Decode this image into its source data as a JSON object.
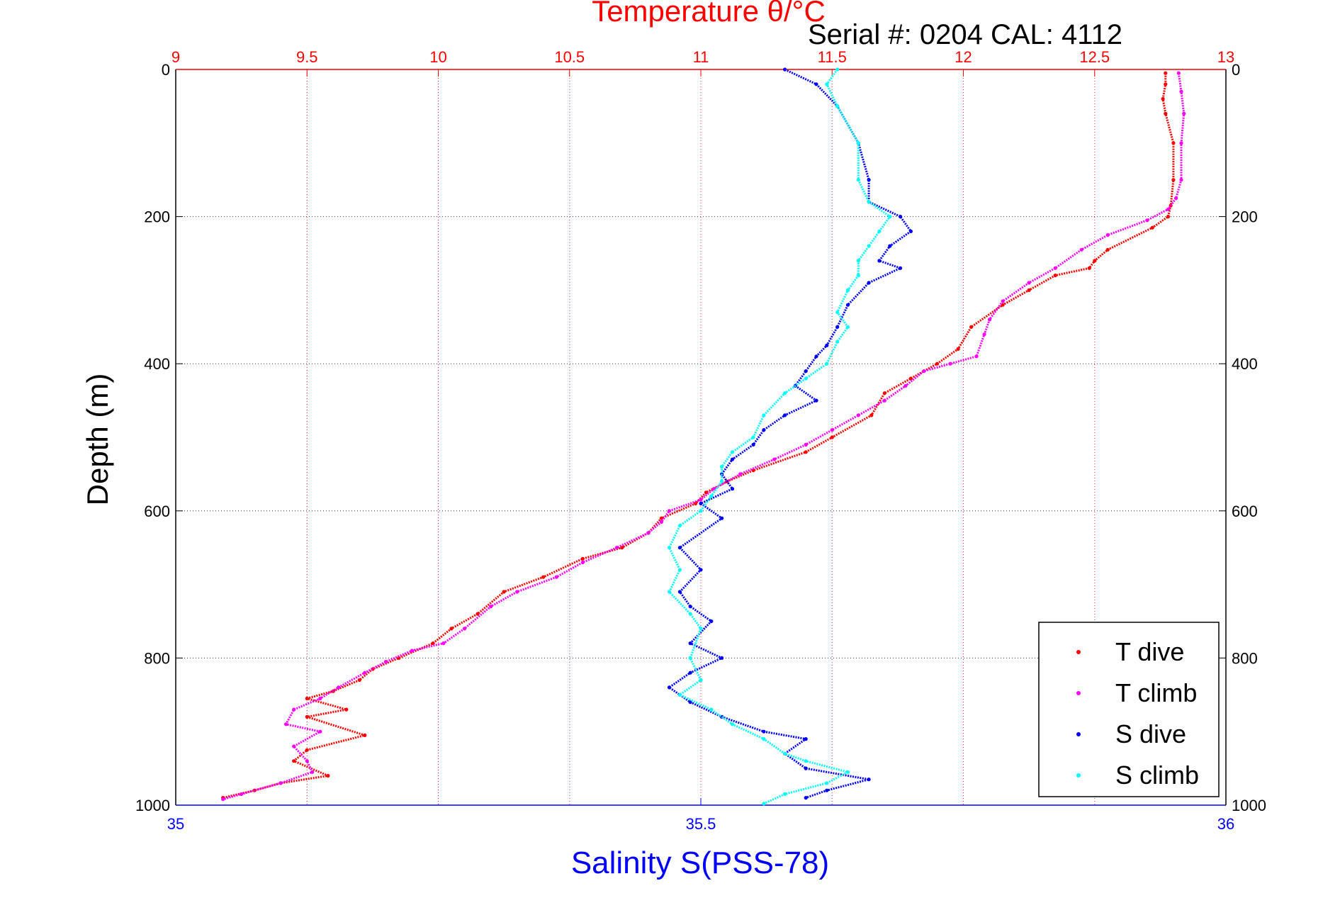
{
  "chart_data": {
    "type": "scatter",
    "title": "Temperature θ/°C",
    "subtitle": "Serial #: 0204  CAL: 4112",
    "ylabel": "Depth (m)",
    "xlabel": "Salinity S(PSS-78)",
    "ylim": [
      0,
      1000
    ],
    "y_reversed": true,
    "x_top_lim": [
      9,
      13
    ],
    "x_bottom_lim": [
      35,
      36
    ],
    "y_ticks": [
      "0",
      "200",
      "400",
      "600",
      "800",
      "1000"
    ],
    "top_ticks": [
      "9",
      "9.5",
      "10",
      "10.5",
      "11",
      "11.5",
      "12",
      "12.5",
      "13"
    ],
    "bottom_ticks": [
      "35",
      "35.5",
      "36"
    ],
    "grid": true,
    "legend_position": "bottom-right",
    "series": [
      {
        "name": "T dive",
        "axis": "top",
        "color": "#ff0000",
        "points": [
          [
            12.77,
            5
          ],
          [
            12.77,
            20
          ],
          [
            12.76,
            40
          ],
          [
            12.77,
            60
          ],
          [
            12.8,
            100
          ],
          [
            12.8,
            150
          ],
          [
            12.79,
            185
          ],
          [
            12.78,
            200
          ],
          [
            12.72,
            215
          ],
          [
            12.55,
            245
          ],
          [
            12.5,
            260
          ],
          [
            12.48,
            270
          ],
          [
            12.35,
            280
          ],
          [
            12.25,
            300
          ],
          [
            12.15,
            320
          ],
          [
            12.03,
            350
          ],
          [
            11.98,
            380
          ],
          [
            11.9,
            400
          ],
          [
            11.8,
            420
          ],
          [
            11.7,
            440
          ],
          [
            11.65,
            470
          ],
          [
            11.5,
            500
          ],
          [
            11.4,
            520
          ],
          [
            11.2,
            545
          ],
          [
            11.1,
            560
          ],
          [
            11.02,
            575
          ],
          [
            10.98,
            590
          ],
          [
            10.85,
            610
          ],
          [
            10.8,
            630
          ],
          [
            10.7,
            650
          ],
          [
            10.55,
            665
          ],
          [
            10.4,
            690
          ],
          [
            10.25,
            710
          ],
          [
            10.15,
            740
          ],
          [
            10.05,
            760
          ],
          [
            9.98,
            780
          ],
          [
            9.85,
            800
          ],
          [
            9.75,
            815
          ],
          [
            9.7,
            830
          ],
          [
            9.6,
            845
          ],
          [
            9.5,
            855
          ],
          [
            9.65,
            870
          ],
          [
            9.5,
            880
          ],
          [
            9.72,
            905
          ],
          [
            9.5,
            925
          ],
          [
            9.45,
            940
          ],
          [
            9.58,
            960
          ],
          [
            9.4,
            970
          ],
          [
            9.3,
            980
          ],
          [
            9.18,
            990
          ]
        ]
      },
      {
        "name": "T climb",
        "axis": "top",
        "color": "#ff00ff",
        "points": [
          [
            12.82,
            5
          ],
          [
            12.83,
            30
          ],
          [
            12.84,
            60
          ],
          [
            12.83,
            100
          ],
          [
            12.83,
            150
          ],
          [
            12.81,
            175
          ],
          [
            12.78,
            190
          ],
          [
            12.7,
            205
          ],
          [
            12.55,
            225
          ],
          [
            12.45,
            245
          ],
          [
            12.35,
            270
          ],
          [
            12.25,
            290
          ],
          [
            12.15,
            315
          ],
          [
            12.1,
            340
          ],
          [
            12.08,
            360
          ],
          [
            12.05,
            390
          ],
          [
            11.95,
            400
          ],
          [
            11.85,
            410
          ],
          [
            11.78,
            430
          ],
          [
            11.7,
            450
          ],
          [
            11.6,
            470
          ],
          [
            11.5,
            490
          ],
          [
            11.4,
            510
          ],
          [
            11.28,
            530
          ],
          [
            11.15,
            550
          ],
          [
            11.05,
            570
          ],
          [
            11.0,
            585
          ],
          [
            10.88,
            600
          ],
          [
            10.85,
            615
          ],
          [
            10.8,
            630
          ],
          [
            10.68,
            650
          ],
          [
            10.55,
            670
          ],
          [
            10.45,
            690
          ],
          [
            10.3,
            710
          ],
          [
            10.2,
            730
          ],
          [
            10.1,
            760
          ],
          [
            10.02,
            780
          ],
          [
            9.9,
            790
          ],
          [
            9.8,
            805
          ],
          [
            9.72,
            820
          ],
          [
            9.62,
            840
          ],
          [
            9.55,
            855
          ],
          [
            9.45,
            870
          ],
          [
            9.42,
            890
          ],
          [
            9.55,
            900
          ],
          [
            9.45,
            920
          ],
          [
            9.5,
            940
          ],
          [
            9.52,
            955
          ],
          [
            9.4,
            970
          ],
          [
            9.25,
            985
          ],
          [
            9.18,
            992
          ]
        ]
      },
      {
        "name": "S dive",
        "axis": "bottom",
        "color": "#0000ff",
        "points": [
          [
            35.58,
            0
          ],
          [
            35.61,
            20
          ],
          [
            35.63,
            50
          ],
          [
            35.65,
            100
          ],
          [
            35.66,
            150
          ],
          [
            35.66,
            180
          ],
          [
            35.69,
            200
          ],
          [
            35.7,
            220
          ],
          [
            35.68,
            240
          ],
          [
            35.67,
            260
          ],
          [
            35.69,
            270
          ],
          [
            35.66,
            290
          ],
          [
            35.64,
            320
          ],
          [
            35.63,
            350
          ],
          [
            35.62,
            375
          ],
          [
            35.61,
            390
          ],
          [
            35.6,
            410
          ],
          [
            35.59,
            430
          ],
          [
            35.61,
            450
          ],
          [
            35.58,
            470
          ],
          [
            35.56,
            490
          ],
          [
            35.55,
            510
          ],
          [
            35.53,
            530
          ],
          [
            35.52,
            550
          ],
          [
            35.53,
            570
          ],
          [
            35.5,
            590
          ],
          [
            35.52,
            610
          ],
          [
            35.48,
            650
          ],
          [
            35.5,
            680
          ],
          [
            35.48,
            710
          ],
          [
            35.49,
            730
          ],
          [
            35.51,
            750
          ],
          [
            35.49,
            780
          ],
          [
            35.52,
            800
          ],
          [
            35.49,
            820
          ],
          [
            35.47,
            840
          ],
          [
            35.49,
            860
          ],
          [
            35.52,
            880
          ],
          [
            35.56,
            900
          ],
          [
            35.6,
            910
          ],
          [
            35.58,
            930
          ],
          [
            35.6,
            950
          ],
          [
            35.66,
            965
          ],
          [
            35.62,
            980
          ],
          [
            35.6,
            990
          ]
        ]
      },
      {
        "name": "S climb",
        "axis": "bottom",
        "color": "#00ffff",
        "points": [
          [
            35.63,
            0
          ],
          [
            35.62,
            20
          ],
          [
            35.63,
            50
          ],
          [
            35.65,
            100
          ],
          [
            35.65,
            150
          ],
          [
            35.66,
            180
          ],
          [
            35.68,
            200
          ],
          [
            35.67,
            220
          ],
          [
            35.66,
            240
          ],
          [
            35.65,
            260
          ],
          [
            35.65,
            280
          ],
          [
            35.64,
            300
          ],
          [
            35.63,
            330
          ],
          [
            35.64,
            350
          ],
          [
            35.63,
            370
          ],
          [
            35.62,
            400
          ],
          [
            35.6,
            420
          ],
          [
            35.58,
            440
          ],
          [
            35.56,
            470
          ],
          [
            35.55,
            500
          ],
          [
            35.53,
            520
          ],
          [
            35.52,
            540
          ],
          [
            35.52,
            560
          ],
          [
            35.51,
            580
          ],
          [
            35.5,
            600
          ],
          [
            35.48,
            620
          ],
          [
            35.47,
            650
          ],
          [
            35.48,
            680
          ],
          [
            35.47,
            710
          ],
          [
            35.49,
            740
          ],
          [
            35.5,
            760
          ],
          [
            35.49,
            800
          ],
          [
            35.5,
            830
          ],
          [
            35.48,
            850
          ],
          [
            35.51,
            870
          ],
          [
            35.53,
            890
          ],
          [
            35.56,
            910
          ],
          [
            35.58,
            930
          ],
          [
            35.6,
            940
          ],
          [
            35.64,
            955
          ],
          [
            35.62,
            970
          ],
          [
            35.58,
            985
          ],
          [
            35.56,
            998
          ]
        ]
      }
    ]
  }
}
